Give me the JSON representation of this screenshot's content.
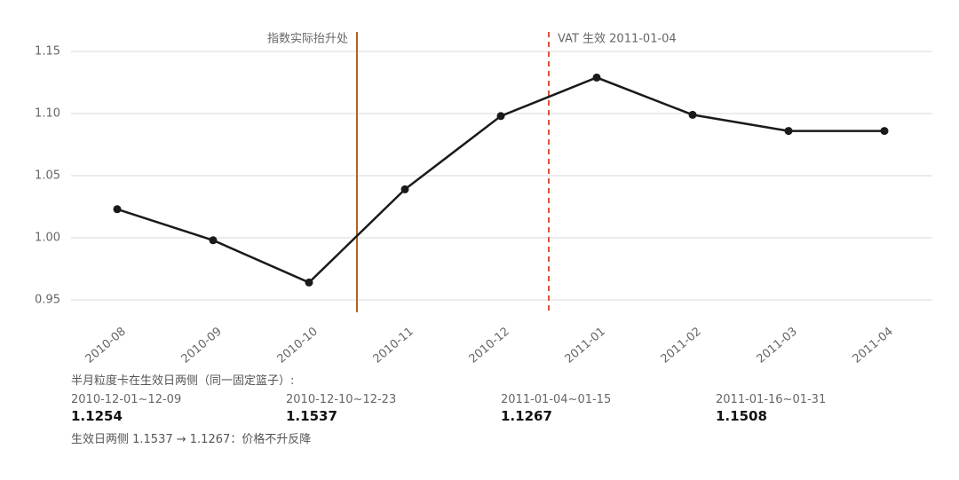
{
  "chart_data": {
    "type": "line",
    "categories": [
      "2010-08",
      "2010-09",
      "2010-10",
      "2010-11",
      "2010-12",
      "2011-01",
      "2011-02",
      "2011-03",
      "2011-04"
    ],
    "values": [
      1.023,
      0.998,
      0.964,
      1.039,
      1.098,
      1.129,
      1.099,
      1.086,
      1.086
    ],
    "color": "#1a1a1a",
    "ylim": [
      0.94,
      1.16
    ],
    "yticks": [
      0.95,
      {
        "value": 1,
        "label": "1.00"
      },
      1.05,
      {
        "value": 1.1,
        "label": "1.10"
      },
      1.15
    ],
    "grid": true,
    "annotations": [
      {
        "text": "指数实际抬升处",
        "color": "#b5651d",
        "style": "solid"
      },
      {
        "text": "VAT 生效 2011-01-04",
        "color": "#d9533a",
        "style": "dashed"
      }
    ]
  },
  "notes": {
    "heading": "半月粒度卡在生效日两侧（同一固定篮子）:",
    "periods": [
      {
        "label": "2010-12-01~12-09",
        "value": 1.1254
      },
      {
        "label": "2010-12-10~12-23",
        "value": 1.1537
      },
      {
        "label": "2011-01-04~01-15",
        "value": 1.1267
      },
      {
        "label": "2011-01-16~01-31",
        "value": 1.1508
      }
    ],
    "summary": "生效日两侧 1.1537 → 1.1267：价格不升反降"
  }
}
